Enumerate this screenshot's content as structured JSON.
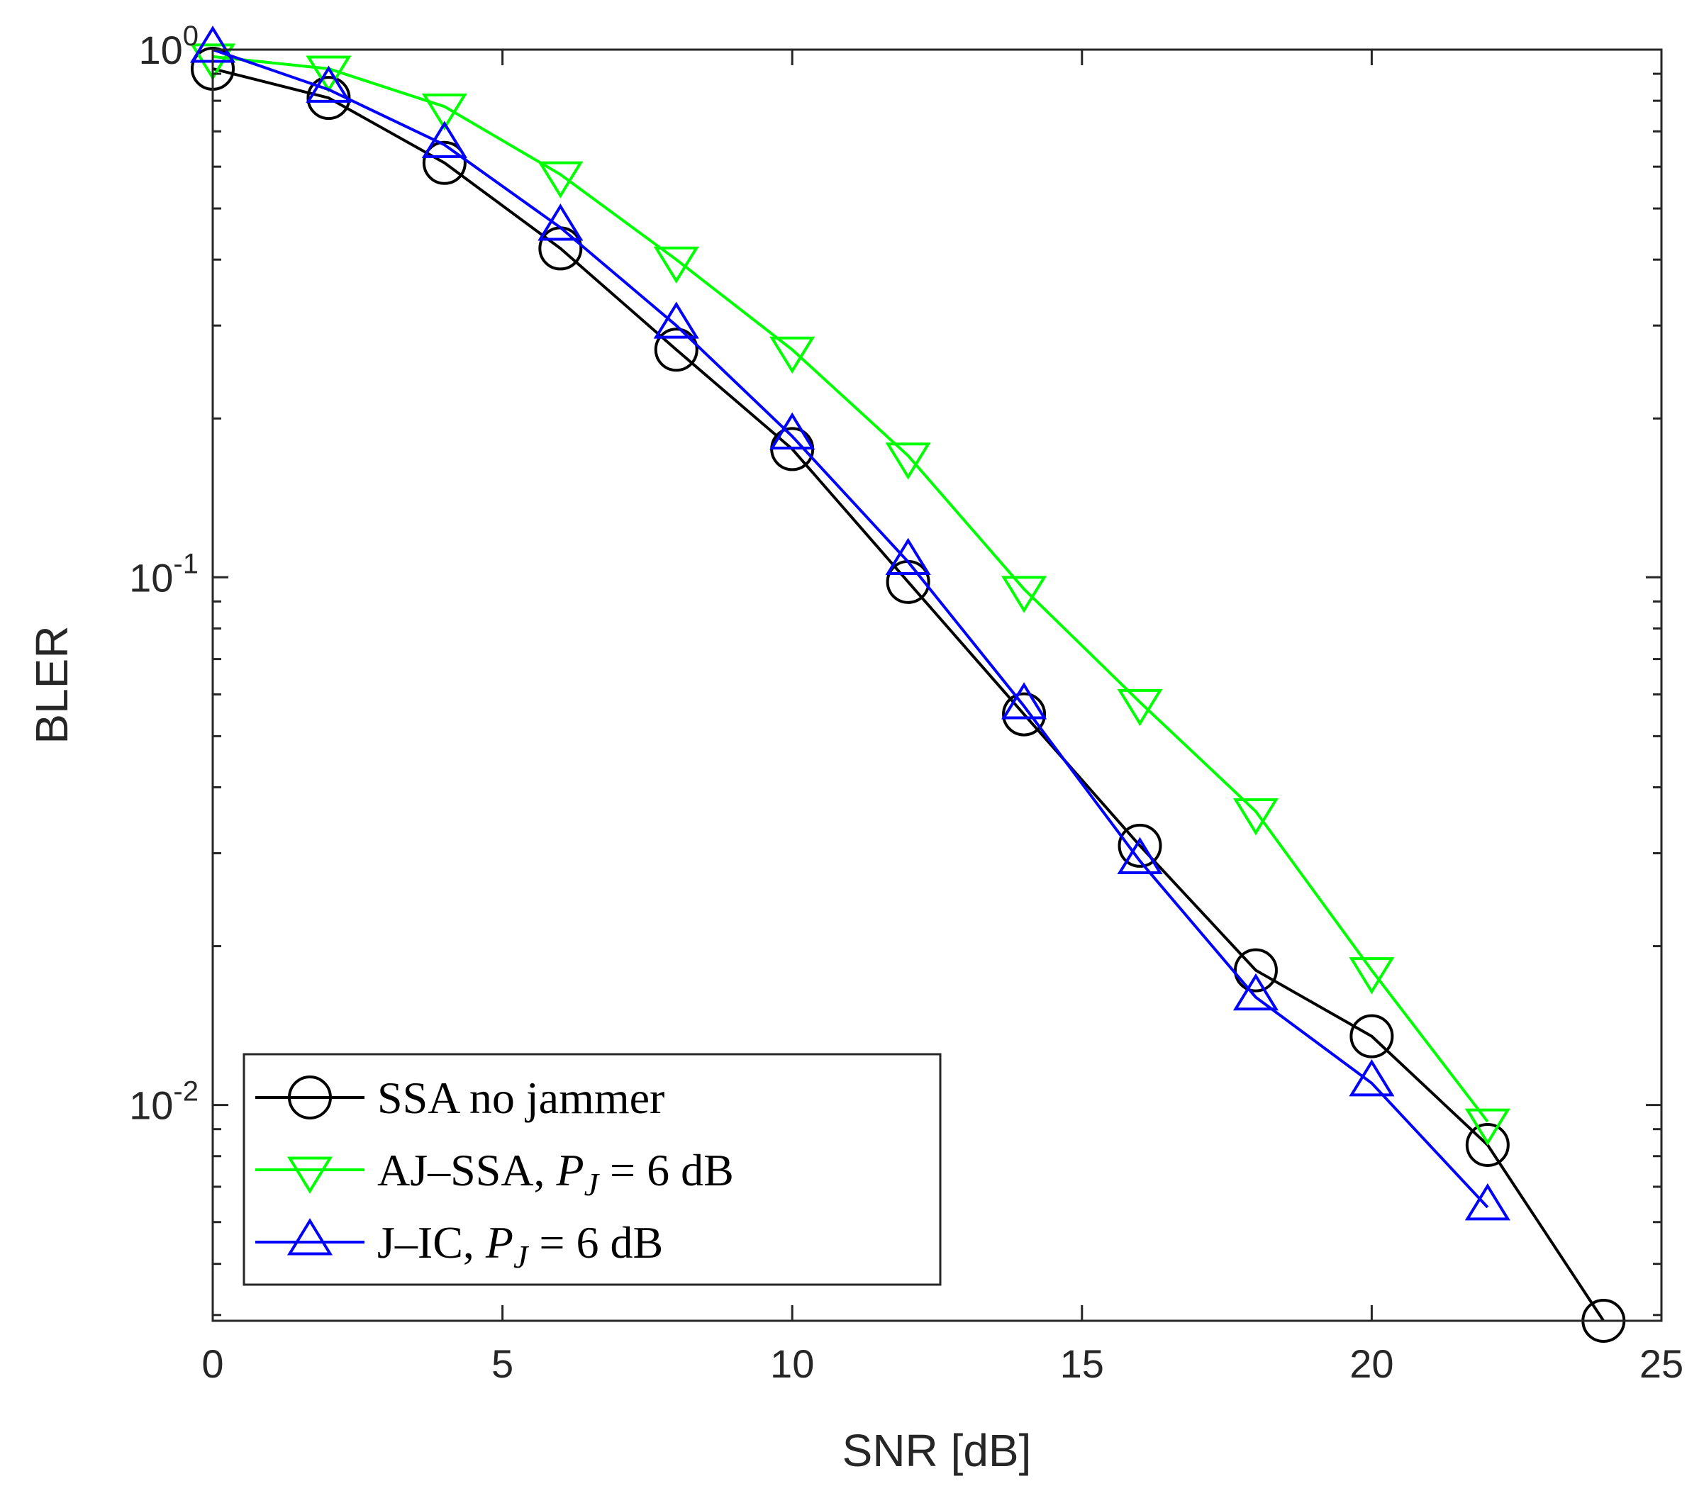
{
  "chart_data": {
    "type": "line",
    "title": "",
    "xlabel": "SNR [dB]",
    "ylabel": "BLER",
    "xlim": [
      0,
      25
    ],
    "ylim": [
      0.0039,
      1
    ],
    "yscale": "log",
    "grid": false,
    "x_ticks": [
      0,
      5,
      10,
      15,
      20,
      25
    ],
    "x_tick_labels": [
      "0",
      "5",
      "10",
      "15",
      "20",
      "25"
    ],
    "y_ticks": [
      {
        "value": 1,
        "base": "10",
        "exp": "0"
      },
      {
        "value": 0.1,
        "base": "10",
        "exp": "-1"
      },
      {
        "value": 0.01,
        "base": "10",
        "exp": "-2"
      }
    ],
    "legend_position": "bottom-left",
    "series": [
      {
        "name": "SSA no jammer",
        "legend_parts": [
          "SSA no jammer"
        ],
        "color": "#000000",
        "marker": "circle",
        "x": [
          0,
          2,
          4,
          6,
          8,
          10,
          12,
          14,
          16,
          18,
          20,
          22,
          24
        ],
        "y": [
          0.92,
          0.81,
          0.61,
          0.42,
          0.27,
          0.175,
          0.098,
          0.055,
          0.031,
          0.018,
          0.0135,
          0.0084,
          0.0039
        ]
      },
      {
        "name": "AJ-SSA, P_J = 6 dB",
        "legend_parts": [
          "AJ–SSA, ",
          "P",
          "J",
          " = 6 dB"
        ],
        "color": "#00ff00",
        "marker": "triangle-down",
        "x": [
          0,
          2,
          4,
          6,
          8,
          10,
          12,
          14,
          16,
          18,
          20,
          22
        ],
        "y": [
          0.97,
          0.92,
          0.78,
          0.58,
          0.4,
          0.27,
          0.17,
          0.095,
          0.058,
          0.036,
          0.018,
          0.0093
        ]
      },
      {
        "name": "J-IC, P_J = 6 dB",
        "legend_parts": [
          "J–IC, ",
          "P",
          "J",
          " = 6 dB"
        ],
        "color": "#0000ff",
        "marker": "triangle-up",
        "x": [
          0,
          2,
          4,
          6,
          8,
          10,
          12,
          14,
          16,
          18,
          20,
          22
        ],
        "y": [
          1.0,
          0.84,
          0.66,
          0.46,
          0.3,
          0.185,
          0.107,
          0.057,
          0.029,
          0.016,
          0.011,
          0.0064
        ]
      }
    ]
  }
}
